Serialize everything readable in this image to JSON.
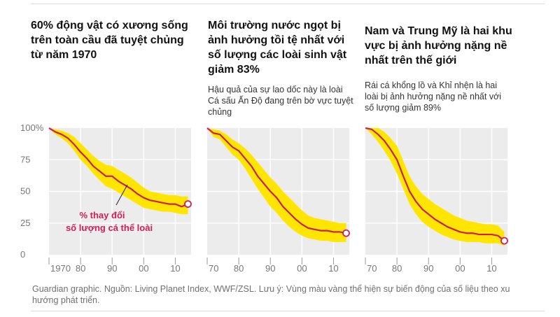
{
  "panels": [
    {
      "title": "60% động vật có xương sống trên toàn cầu đã tuyệt chủng từ năm 1970",
      "subtitle": ""
    },
    {
      "title": "Môi trường nước ngọt bị ảnh hưởng tồi tệ nhất với số lượng các loài sinh vật giảm 83%",
      "subtitle": "Hậu quả của sự lao dốc này là loài Cá sấu Ấn Độ đang trên bờ vực tuyệt chủng"
    },
    {
      "title": "Nam và Trung Mỹ là hai khu vực bị ảnh hưởng nặng nề nhất trên thế giới",
      "subtitle": "Rái cá khổng lồ và Khỉ nhện là hai loài bị ảnh hưởng nặng nề nhất với số lượng giảm 89%"
    }
  ],
  "annotation": {
    "line1": "% thay đổi",
    "line2": "số lượng cá thể loài"
  },
  "footer": "Guardian graphic. Nguồn: Living Planet Index, WWF/ZSL. Lưu ý: Vùng màu vàng thể hiện sự biến động của số liệu theo xu hướng phát triển.",
  "colors": {
    "band": "#ffe500",
    "line": "#cc1f5a",
    "plot_bg": "#ececec",
    "grid": "#ffffff"
  },
  "chart_data": [
    {
      "type": "line",
      "title": "60% động vật có xương sống trên toàn cầu đã tuyệt chủng từ năm 1970",
      "ylim": [
        0,
        100
      ],
      "yticks": [
        0,
        25,
        50,
        75,
        100
      ],
      "ytick_labels": [
        "0",
        "25",
        "50",
        "75",
        "100%"
      ],
      "xticks": [
        1970,
        1980,
        1990,
        2000,
        2010
      ],
      "xtick_labels": [
        "1970",
        "80",
        "90",
        "00",
        "10"
      ],
      "x": [
        1970,
        1972,
        1974,
        1976,
        1978,
        1980,
        1982,
        1984,
        1986,
        1988,
        1990,
        1992,
        1994,
        1996,
        1998,
        2000,
        2002,
        2004,
        2006,
        2008,
        2010,
        2012,
        2014
      ],
      "values": [
        100,
        97,
        95,
        92,
        87,
        81,
        76,
        70,
        66,
        62,
        62,
        58,
        55,
        52,
        48,
        45,
        43,
        42,
        41,
        40,
        40,
        38,
        40
      ],
      "band_low": [
        100,
        95,
        92,
        88,
        82,
        75,
        70,
        64,
        59,
        54,
        52,
        49,
        46,
        43,
        40,
        37,
        36,
        35,
        34,
        34,
        33,
        32,
        32
      ],
      "band_high": [
        100,
        99,
        98,
        96,
        93,
        88,
        83,
        78,
        74,
        71,
        70,
        67,
        64,
        61,
        57,
        53,
        50,
        49,
        48,
        47,
        47,
        46,
        46
      ]
    },
    {
      "type": "line",
      "title": "Môi trường nước ngọt bị ảnh hưởng tồi tệ nhất với số lượng các loài sinh vật giảm 83%",
      "ylim": [
        0,
        100
      ],
      "yticks": [
        0,
        25,
        50,
        75,
        100
      ],
      "xticks": [
        1970,
        1980,
        1990,
        2000,
        2010
      ],
      "xtick_labels": [
        "70",
        "80",
        "90",
        "00",
        "10"
      ],
      "x": [
        1970,
        1972,
        1974,
        1976,
        1978,
        1980,
        1982,
        1984,
        1986,
        1988,
        1990,
        1992,
        1994,
        1996,
        1998,
        2000,
        2002,
        2004,
        2006,
        2008,
        2010,
        2012,
        2014
      ],
      "values": [
        100,
        96,
        95,
        90,
        85,
        82,
        76,
        70,
        62,
        56,
        50,
        45,
        38,
        33,
        28,
        24,
        21,
        20,
        19,
        19,
        18,
        18,
        17
      ],
      "band_low": [
        100,
        93,
        91,
        85,
        79,
        75,
        68,
        60,
        52,
        45,
        38,
        33,
        27,
        22,
        18,
        15,
        13,
        12,
        11,
        11,
        10,
        10,
        10
      ],
      "band_high": [
        100,
        99,
        98,
        95,
        91,
        88,
        84,
        79,
        73,
        67,
        61,
        56,
        50,
        45,
        40,
        35,
        31,
        29,
        28,
        27,
        26,
        25,
        25
      ]
    },
    {
      "type": "line",
      "title": "Nam và Trung Mỹ là hai khu vực bị ảnh hưởng nặng nề nhất trên thế giới",
      "ylim": [
        0,
        100
      ],
      "yticks": [
        0,
        25,
        50,
        75,
        100
      ],
      "xticks": [
        1970,
        1980,
        1990,
        2000,
        2010
      ],
      "xtick_labels": [
        "70",
        "80",
        "90",
        "00",
        "10"
      ],
      "x": [
        1970,
        1972,
        1974,
        1976,
        1978,
        1980,
        1982,
        1984,
        1986,
        1988,
        1990,
        1992,
        1994,
        1996,
        1998,
        2000,
        2002,
        2004,
        2006,
        2008,
        2010,
        2012,
        2014
      ],
      "values": [
        100,
        99,
        95,
        90,
        83,
        75,
        62,
        50,
        42,
        36,
        32,
        28,
        25,
        22,
        20,
        18,
        17,
        17,
        16,
        16,
        16,
        15,
        11
      ],
      "band_low": [
        100,
        95,
        89,
        82,
        74,
        64,
        52,
        40,
        32,
        26,
        22,
        19,
        16,
        14,
        12,
        11,
        10,
        10,
        10,
        9,
        9,
        9,
        7
      ],
      "band_high": [
        100,
        100,
        100,
        97,
        92,
        86,
        74,
        62,
        54,
        48,
        44,
        40,
        37,
        34,
        31,
        29,
        27,
        26,
        25,
        24,
        24,
        23,
        18
      ]
    }
  ]
}
